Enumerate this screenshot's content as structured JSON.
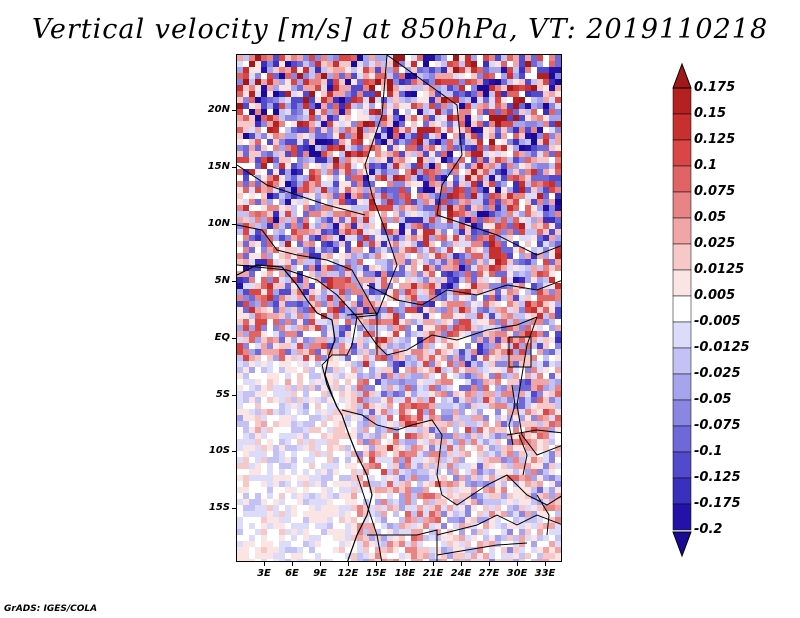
{
  "title": "Vertical velocity [m/s] at 850hPa, VT: 2019110218",
  "credit": "GrADS: IGES/COLA",
  "map": {
    "lat_labels": [
      "20N",
      "15N",
      "10N",
      "5N",
      "EQ",
      "5S",
      "10S",
      "15S"
    ],
    "lon_labels": [
      "3E",
      "6E",
      "9E",
      "12E",
      "15E",
      "18E",
      "21E",
      "24E",
      "27E",
      "30E",
      "33E"
    ],
    "field_colors": {
      "positive": "#d23a3a",
      "negative": "#5a55d8",
      "neutral": "#ffffff"
    }
  },
  "colorbar": {
    "labels": [
      "0.175",
      "0.15",
      "0.125",
      "0.1",
      "0.075",
      "0.05",
      "0.025",
      "0.0125",
      "0.005",
      "-0.005",
      "-0.0125",
      "-0.025",
      "-0.05",
      "-0.075",
      "-0.1",
      "-0.125",
      "-0.175",
      "-0.2"
    ],
    "colors": [
      "#a01818",
      "#b52020",
      "#c83030",
      "#d84646",
      "#e06464",
      "#e88484",
      "#f0a6a6",
      "#f6c8c8",
      "#fbe4e4",
      "#ffffff",
      "#dcdcfa",
      "#c4c2f4",
      "#a6a4ec",
      "#8a86e2",
      "#6e68d8",
      "#524acc",
      "#3a30be",
      "#2412a8",
      "#1a0a98"
    ]
  }
}
